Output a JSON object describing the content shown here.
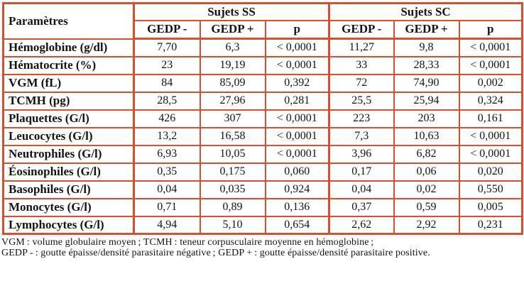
{
  "colors": {
    "border": "#d5502e",
    "text": "#151310",
    "background": "#ffffff"
  },
  "table": {
    "param_header": "Paramètres",
    "groups": [
      {
        "label": "Sujets SS",
        "subheaders": [
          "GEDP -",
          "GEDP +",
          "p"
        ]
      },
      {
        "label": "Sujets SC",
        "subheaders": [
          "GEDP -",
          "GEDP +",
          "p"
        ]
      }
    ],
    "rows": [
      {
        "label": "Hémoglobine (g/dl)",
        "values": [
          "7,70",
          "6,3",
          "< 0,0001",
          "11,27",
          "9,8",
          "< 0,0001"
        ]
      },
      {
        "label": "Hématocrite (%)",
        "values": [
          "23",
          "19,19",
          "< 0,0001",
          "33",
          "28,33",
          "< 0,0001"
        ]
      },
      {
        "label": "VGM (fL)",
        "values": [
          "84",
          "85,09",
          "0,392",
          "72",
          "74,90",
          "0,002"
        ]
      },
      {
        "label": "TCMH (pg)",
        "values": [
          "28,5",
          "27,96",
          "0,281",
          "25,5",
          "25,94",
          "0,324"
        ]
      },
      {
        "label": "Plaquettes (G/l)",
        "values": [
          "426",
          "307",
          "< 0,0001",
          "223",
          "203",
          "0,161"
        ]
      },
      {
        "label": "Leucocytes (G/l)",
        "values": [
          "13,2",
          "16,58",
          "< 0,0001",
          "7,3",
          "10,63",
          "< 0,0001"
        ]
      },
      {
        "label": "Neutrophiles (G/l)",
        "values": [
          "6,93",
          "10,05",
          "< 0,0001",
          "3,96",
          "6,82",
          "< 0,0001"
        ]
      },
      {
        "label": "Éosinophiles (G/l)",
        "values": [
          "0,35",
          "0,175",
          "0,060",
          "0,17",
          "0,06",
          "0,020"
        ]
      },
      {
        "label": "Basophiles (G/l)",
        "values": [
          "0,04",
          "0,035",
          "0,924",
          "0,04",
          "0,02",
          "0,550"
        ]
      },
      {
        "label": "Monocytes (G/l)",
        "values": [
          "0,71",
          "0,89",
          "0,136",
          "0,37",
          "0,59",
          "0,005"
        ]
      },
      {
        "label": "Lymphocytes (G/l)",
        "values": [
          "4,94",
          "5,10",
          "0,654",
          "2,62",
          "2,92",
          "0,231"
        ]
      }
    ]
  },
  "footnotes": [
    "VGM : volume globulaire moyen ; TCMH : teneur corpusculaire moyenne en hémoglobine ;",
    "GEDP - : goutte épaisse/densité parasitaire négative ; GEDP + : goutte épaisse/densité parasitaire positive."
  ]
}
